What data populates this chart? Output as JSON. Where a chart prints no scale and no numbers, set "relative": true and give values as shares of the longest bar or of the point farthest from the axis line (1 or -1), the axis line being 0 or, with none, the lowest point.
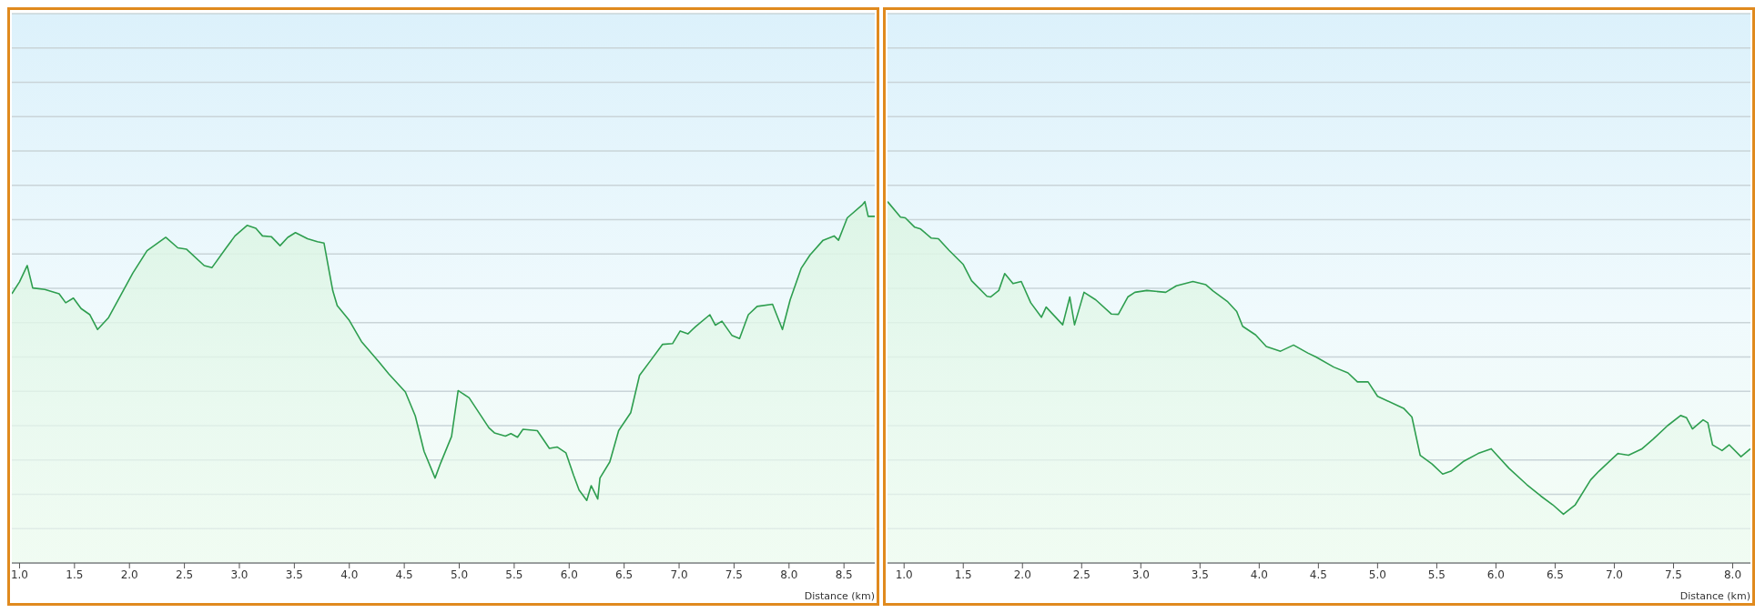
{
  "chart_data": [
    {
      "type": "area",
      "relative": true,
      "xlabel": "Distance (km)",
      "grid": "y",
      "tick_labels": "x",
      "marker": "none",
      "xlim": [
        0.93,
        8.78
      ],
      "xticks": [
        {
          "value": 1,
          "label": "1.0"
        },
        {
          "value": 1.5,
          "label": "1.5"
        },
        {
          "value": 2,
          "label": "2.0"
        },
        {
          "value": 2.5,
          "label": "2.5"
        },
        {
          "value": 3,
          "label": "3.0"
        },
        {
          "value": 3.5,
          "label": "3.5"
        },
        {
          "value": 4,
          "label": "4.0"
        },
        {
          "value": 4.5,
          "label": "4.5"
        },
        {
          "value": 5,
          "label": "5.0"
        },
        {
          "value": 5.5,
          "label": "5.5"
        },
        {
          "value": 6,
          "label": "6.0"
        },
        {
          "value": 6.5,
          "label": "6.5"
        },
        {
          "value": 7,
          "label": "7.0"
        },
        {
          "value": 7.5,
          "label": "7.5"
        },
        {
          "value": 8,
          "label": "8.0"
        },
        {
          "value": 8.5,
          "label": "8.5"
        }
      ],
      "series": [
        {
          "color": "#2e9e4f",
          "x": [
            0.93,
            1.0,
            1.07,
            1.12,
            1.23,
            1.36,
            1.42,
            1.49,
            1.56,
            1.64,
            1.71,
            1.81,
            2.03,
            2.16,
            2.33,
            2.44,
            2.52,
            2.68,
            2.75,
            2.88,
            2.96,
            3.07,
            3.15,
            3.21,
            3.29,
            3.37,
            3.44,
            3.51,
            3.62,
            3.71,
            3.77,
            3.82,
            3.85,
            3.89,
            4.0,
            4.11,
            4.27,
            4.36,
            4.51,
            4.6,
            4.68,
            4.78,
            4.83,
            4.93,
            4.99,
            5.09,
            5.27,
            5.32,
            5.42,
            5.47,
            5.53,
            5.58,
            5.71,
            5.82,
            5.89,
            5.97,
            6.04,
            6.09,
            6.16,
            6.2,
            6.26,
            6.28,
            6.37,
            6.45,
            6.56,
            6.64,
            6.75,
            6.85,
            6.94,
            7.01,
            7.08,
            7.15,
            7.28,
            7.33,
            7.39,
            7.48,
            7.55,
            7.63,
            7.71,
            7.85,
            7.94,
            8.01,
            8.11,
            8.19,
            8.31,
            8.41,
            8.45,
            8.53,
            8.67,
            8.69,
            8.72,
            8.78
          ],
          "values": [
            0.745,
            0.778,
            0.823,
            0.761,
            0.757,
            0.745,
            0.72,
            0.733,
            0.704,
            0.687,
            0.646,
            0.679,
            0.802,
            0.864,
            0.901,
            0.872,
            0.868,
            0.823,
            0.817,
            0.872,
            0.905,
            0.934,
            0.926,
            0.905,
            0.903,
            0.878,
            0.901,
            0.914,
            0.897,
            0.889,
            0.885,
            0.802,
            0.753,
            0.712,
            0.671,
            0.613,
            0.556,
            0.523,
            0.473,
            0.407,
            0.309,
            0.235,
            0.276,
            0.35,
            0.477,
            0.457,
            0.374,
            0.36,
            0.351,
            0.358,
            0.348,
            0.37,
            0.366,
            0.317,
            0.321,
            0.305,
            0.243,
            0.202,
            0.173,
            0.214,
            0.177,
            0.235,
            0.28,
            0.366,
            0.416,
            0.519,
            0.564,
            0.605,
            0.607,
            0.642,
            0.634,
            0.654,
            0.687,
            0.658,
            0.669,
            0.63,
            0.621,
            0.687,
            0.71,
            0.716,
            0.646,
            0.728,
            0.815,
            0.852,
            0.893,
            0.905,
            0.893,
            0.955,
            0.992,
            1.0,
            0.959,
            0.959
          ]
        }
      ]
    },
    {
      "type": "area",
      "relative": true,
      "xlabel": "Distance (km)",
      "grid": "y",
      "tick_labels": "x",
      "marker": "none",
      "xlim": [
        0.86,
        8.15
      ],
      "xticks": [
        {
          "value": 1,
          "label": "1.0"
        },
        {
          "value": 1.5,
          "label": "1.5"
        },
        {
          "value": 2,
          "label": "2.0"
        },
        {
          "value": 2.5,
          "label": "2.5"
        },
        {
          "value": 3,
          "label": "3.0"
        },
        {
          "value": 3.5,
          "label": "3.5"
        },
        {
          "value": 4,
          "label": "4.0"
        },
        {
          "value": 4.5,
          "label": "4.5"
        },
        {
          "value": 5,
          "label": "5.0"
        },
        {
          "value": 5.5,
          "label": "5.5"
        },
        {
          "value": 6,
          "label": "6.0"
        },
        {
          "value": 6.5,
          "label": "6.5"
        },
        {
          "value": 7,
          "label": "7.0"
        },
        {
          "value": 7.5,
          "label": "7.5"
        },
        {
          "value": 8,
          "label": "8.0"
        }
      ],
      "series": [
        {
          "color": "#2e9e4f",
          "x": [
            0.86,
            0.97,
            1.01,
            1.09,
            1.14,
            1.23,
            1.29,
            1.38,
            1.5,
            1.57,
            1.7,
            1.73,
            1.8,
            1.85,
            1.92,
            1.99,
            2.07,
            2.16,
            2.2,
            2.34,
            2.4,
            2.44,
            2.52,
            2.62,
            2.75,
            2.81,
            2.89,
            2.95,
            3.05,
            3.21,
            3.3,
            3.44,
            3.55,
            3.61,
            3.73,
            3.81,
            3.86,
            3.97,
            4.06,
            4.18,
            4.29,
            4.41,
            4.48,
            4.63,
            4.75,
            4.83,
            4.92,
            5.0,
            5.22,
            5.29,
            5.36,
            5.46,
            5.55,
            5.62,
            5.73,
            5.85,
            5.96,
            6.11,
            6.26,
            6.38,
            6.48,
            6.57,
            6.67,
            6.8,
            6.87,
            7.03,
            7.12,
            7.23,
            7.33,
            7.45,
            7.56,
            7.61,
            7.66,
            7.75,
            7.79,
            7.83,
            7.91,
            7.97,
            8.07,
            8.15
          ],
          "values": [
            1.0,
            0.957,
            0.955,
            0.929,
            0.924,
            0.899,
            0.897,
            0.865,
            0.826,
            0.781,
            0.738,
            0.736,
            0.754,
            0.801,
            0.773,
            0.779,
            0.72,
            0.68,
            0.708,
            0.659,
            0.736,
            0.659,
            0.749,
            0.728,
            0.689,
            0.688,
            0.736,
            0.749,
            0.754,
            0.749,
            0.767,
            0.779,
            0.77,
            0.753,
            0.724,
            0.696,
            0.655,
            0.631,
            0.599,
            0.586,
            0.603,
            0.581,
            0.57,
            0.542,
            0.526,
            0.501,
            0.501,
            0.461,
            0.428,
            0.404,
            0.298,
            0.274,
            0.246,
            0.254,
            0.282,
            0.303,
            0.316,
            0.262,
            0.217,
            0.185,
            0.161,
            0.135,
            0.161,
            0.23,
            0.254,
            0.303,
            0.298,
            0.315,
            0.343,
            0.38,
            0.408,
            0.402,
            0.371,
            0.396,
            0.388,
            0.327,
            0.311,
            0.327,
            0.294,
            0.316
          ]
        }
      ]
    }
  ]
}
